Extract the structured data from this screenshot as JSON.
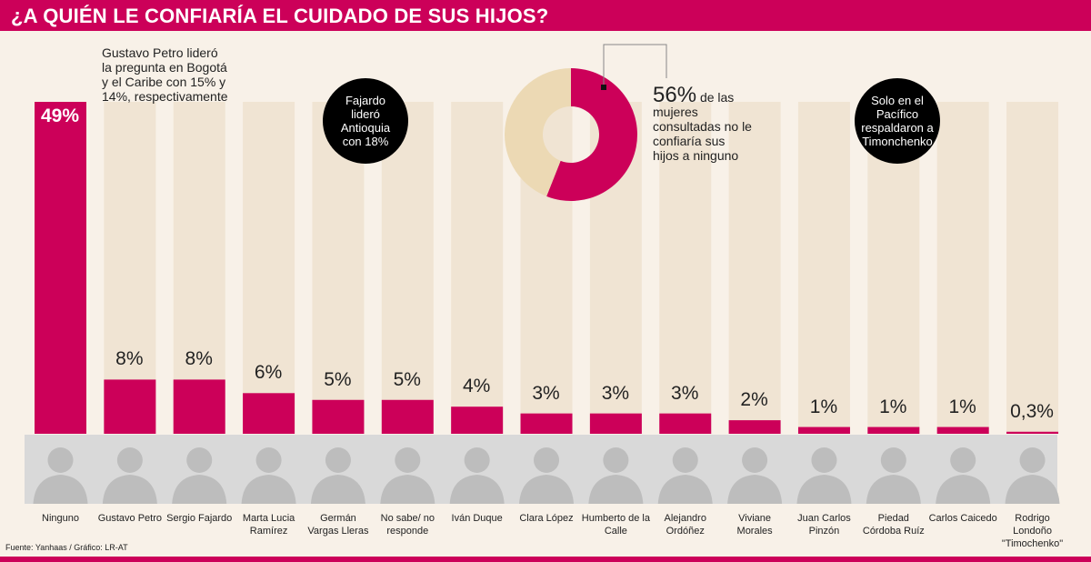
{
  "header": {
    "title": "¿A QUIÉN LE CONFIARÍA EL CUIDADO DE SUS HIJOS?"
  },
  "annotations": {
    "petro_note": "Gustavo Petro lideró la pregunta en Bogotá y el Caribe con 15% y 14%, respectivamente",
    "fajardo_note": "Fajardo lideró Antioquia con 18%",
    "timochenko_note": "Solo en el Pacífico respaldaron a Timonchenko",
    "donut_value": "56%",
    "donut_text_1": "de las",
    "donut_text_2": "mujeres consultadas no le confiaría sus hijos a ninguno"
  },
  "colors": {
    "accent": "#cc0059",
    "track": "#f0e4d3",
    "donut_rest": "#ecd9b4",
    "bg": "#f8f1e8"
  },
  "chart_data": {
    "type": "bar",
    "title": "¿A QUIÉN LE CONFIARÍA EL CUIDADO DE SUS HIJOS?",
    "ylim": [
      0,
      49
    ],
    "categories": [
      "Ninguno",
      "Gustavo Petro",
      "Sergio Fajardo",
      "Marta Lucia Ramírez",
      "Germán Vargas Lleras",
      "No sabe/ no responde",
      "Iván Duque",
      "Clara López",
      "Humberto de la Calle",
      "Alejandro Ordóñez",
      "Viviane Morales",
      "Juan Carlos Pinzón",
      "Piedad Córdoba Ruíz",
      "Carlos Caicedo",
      "Rodrigo Londoño \"Timochenko\""
    ],
    "values": [
      49,
      8,
      8,
      6,
      5,
      5,
      4,
      3,
      3,
      3,
      2,
      1,
      1,
      1,
      0.3
    ],
    "labels": [
      "49%",
      "8%",
      "8%",
      "6%",
      "5%",
      "5%",
      "4%",
      "3%",
      "3%",
      "3%",
      "2%",
      "1%",
      "1%",
      "1%",
      "0,3%"
    ],
    "donut": {
      "value": 56,
      "rest": 44
    }
  },
  "footer": {
    "source": "Fuente:  Yanhaas / Gráfico: LR-AT"
  }
}
